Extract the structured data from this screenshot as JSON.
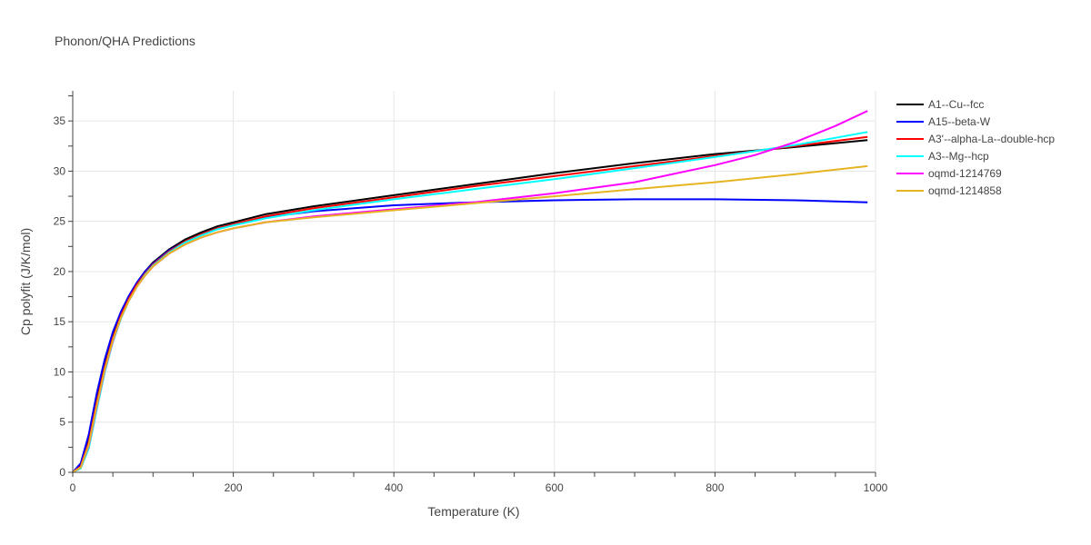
{
  "chart_data": {
    "type": "line",
    "title": "Phonon/QHA Predictions",
    "xlabel": "Temperature (K)",
    "ylabel": "Cp polyfit (J/K/mol)",
    "xlim": [
      0,
      1000
    ],
    "ylim": [
      0,
      38
    ],
    "x_ticks": [
      0,
      200,
      400,
      600,
      800,
      1000
    ],
    "y_ticks": [
      0,
      5,
      10,
      15,
      20,
      25,
      30,
      35
    ],
    "grid": true,
    "legend_position": "top-right",
    "series": [
      {
        "name": "A1--Cu--fcc",
        "color": "#000000",
        "x": [
          0,
          10,
          20,
          30,
          40,
          50,
          60,
          70,
          80,
          90,
          100,
          120,
          140,
          160,
          180,
          200,
          240,
          300,
          400,
          500,
          600,
          700,
          800,
          900,
          990
        ],
        "y": [
          0,
          0.8,
          3.5,
          7.6,
          11.0,
          13.8,
          15.9,
          17.5,
          18.9,
          20.0,
          20.9,
          22.2,
          23.2,
          23.9,
          24.5,
          24.9,
          25.7,
          26.5,
          27.6,
          28.7,
          29.8,
          30.8,
          31.7,
          32.4,
          33.1
        ]
      },
      {
        "name": "A15--beta-W",
        "color": "#0000ff",
        "x": [
          0,
          10,
          20,
          30,
          40,
          50,
          60,
          70,
          80,
          90,
          100,
          120,
          140,
          160,
          180,
          200,
          240,
          300,
          400,
          500,
          600,
          700,
          760,
          800,
          900,
          990
        ],
        "y": [
          0,
          0.9,
          3.8,
          7.9,
          11.3,
          14.0,
          16.0,
          17.6,
          18.9,
          20.0,
          20.8,
          22.1,
          23.0,
          23.7,
          24.3,
          24.7,
          25.4,
          26.0,
          26.6,
          26.9,
          27.1,
          27.2,
          27.2,
          27.2,
          27.1,
          26.9
        ]
      },
      {
        "name": "A3'--alpha-La--double-hcp",
        "color": "#ff0000",
        "x": [
          0,
          10,
          20,
          30,
          40,
          50,
          60,
          70,
          80,
          90,
          100,
          120,
          140,
          160,
          180,
          200,
          240,
          300,
          400,
          500,
          600,
          700,
          800,
          900,
          990
        ],
        "y": [
          0,
          0.6,
          3.0,
          7.0,
          10.5,
          13.4,
          15.6,
          17.3,
          18.7,
          19.8,
          20.7,
          22.0,
          23.0,
          23.7,
          24.3,
          24.7,
          25.5,
          26.3,
          27.4,
          28.5,
          29.5,
          30.5,
          31.5,
          32.5,
          33.4
        ]
      },
      {
        "name": "A3--Mg--hcp",
        "color": "#00ffff",
        "x": [
          0,
          10,
          20,
          30,
          40,
          50,
          60,
          70,
          80,
          90,
          100,
          120,
          140,
          160,
          180,
          200,
          240,
          300,
          400,
          500,
          600,
          700,
          800,
          900,
          990
        ],
        "y": [
          0,
          0.4,
          2.4,
          6.3,
          10.0,
          13.0,
          15.3,
          17.1,
          18.5,
          19.7,
          20.6,
          21.9,
          22.9,
          23.6,
          24.2,
          24.6,
          25.3,
          26.1,
          27.2,
          28.2,
          29.2,
          30.3,
          31.4,
          32.6,
          33.9
        ]
      },
      {
        "name": "oqmd-1214769",
        "color": "#ff00ff",
        "x": [
          0,
          10,
          20,
          30,
          40,
          50,
          60,
          70,
          80,
          90,
          100,
          120,
          140,
          160,
          180,
          200,
          240,
          300,
          400,
          500,
          600,
          700,
          800,
          850,
          900,
          950,
          990
        ],
        "y": [
          0,
          0.5,
          2.7,
          6.6,
          10.2,
          13.1,
          15.4,
          17.1,
          18.5,
          19.6,
          20.5,
          21.8,
          22.7,
          23.4,
          23.9,
          24.3,
          24.9,
          25.5,
          26.2,
          26.9,
          27.8,
          28.9,
          30.6,
          31.6,
          32.9,
          34.5,
          36.0
        ]
      },
      {
        "name": "oqmd-1214858",
        "color": "#e6b422",
        "x": [
          0,
          10,
          20,
          30,
          40,
          50,
          60,
          70,
          80,
          90,
          100,
          120,
          140,
          160,
          180,
          200,
          240,
          300,
          400,
          500,
          600,
          700,
          800,
          900,
          990
        ],
        "y": [
          0,
          0.5,
          2.8,
          6.7,
          10.3,
          13.2,
          15.4,
          17.1,
          18.5,
          19.6,
          20.5,
          21.8,
          22.7,
          23.4,
          23.9,
          24.3,
          24.9,
          25.4,
          26.1,
          26.8,
          27.5,
          28.2,
          28.9,
          29.7,
          30.5
        ]
      }
    ]
  }
}
